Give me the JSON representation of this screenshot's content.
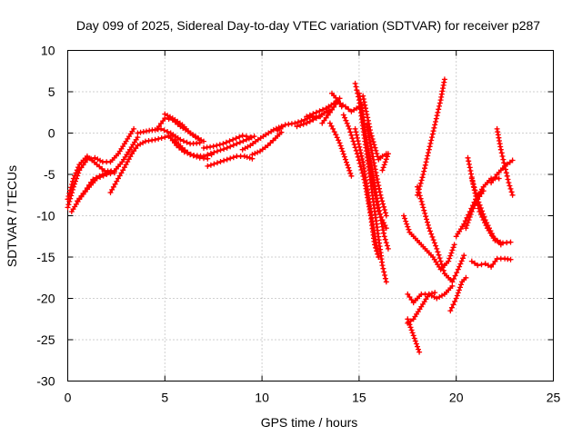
{
  "chart_data": {
    "type": "scatter",
    "title": "Day 099 of 2025, Sidereal Day-to-day VTEC variation (SDTVAR) for receiver p287",
    "xlabel": "GPS time / hours",
    "ylabel": "SDTVAR / TECUs",
    "xlim": [
      0,
      25
    ],
    "ylim": [
      -30,
      10
    ],
    "x_ticks": [
      0,
      5,
      10,
      15,
      20,
      25
    ],
    "y_ticks": [
      -30,
      -25,
      -20,
      -15,
      -10,
      -5,
      0,
      5,
      10
    ],
    "grid": true,
    "marker": "plus",
    "color": "#ff0000",
    "series": [
      {
        "values": [
          [
            0.0,
            -9.0
          ],
          [
            0.3,
            -6.5
          ],
          [
            0.6,
            -4.5
          ],
          [
            1.0,
            -3.2
          ],
          [
            1.4,
            -3.0
          ],
          [
            1.8,
            -3.5
          ],
          [
            2.2,
            -3.5
          ],
          [
            2.6,
            -2.5
          ],
          [
            3.0,
            -1.0
          ],
          [
            3.4,
            0.5
          ]
        ]
      },
      {
        "values": [
          [
            0.0,
            -8.0
          ],
          [
            0.3,
            -5.5
          ],
          [
            0.6,
            -3.8
          ],
          [
            1.0,
            -2.8
          ],
          [
            1.5,
            -3.8
          ],
          [
            1.9,
            -4.6
          ],
          [
            2.4,
            -4.6
          ],
          [
            2.8,
            -3.5
          ],
          [
            3.2,
            -2.0
          ],
          [
            3.6,
            -0.5
          ]
        ]
      },
      {
        "values": [
          [
            0.2,
            -9.5
          ],
          [
            0.6,
            -8.0
          ],
          [
            1.0,
            -6.8
          ],
          [
            1.5,
            -5.5
          ],
          [
            2.0,
            -5.0
          ],
          [
            2.4,
            -4.8
          ]
        ]
      },
      {
        "values": [
          [
            0.5,
            -8.2
          ],
          [
            0.9,
            -7.0
          ],
          [
            1.3,
            -5.6
          ],
          [
            1.8,
            -5.0
          ],
          [
            2.2,
            -4.7
          ]
        ]
      },
      {
        "values": [
          [
            2.2,
            -7.2
          ],
          [
            2.6,
            -5.5
          ],
          [
            3.0,
            -3.8
          ],
          [
            3.3,
            -2.5
          ]
        ]
      },
      {
        "values": [
          [
            3.3,
            -2.5
          ],
          [
            3.6,
            -1.5
          ],
          [
            4.0,
            -1.0
          ],
          [
            4.5,
            -0.8
          ],
          [
            5.0,
            -0.5
          ],
          [
            5.4,
            -0.3
          ]
        ]
      },
      {
        "values": [
          [
            3.6,
            0.0
          ],
          [
            4.2,
            0.3
          ],
          [
            4.8,
            0.5
          ],
          [
            5.3,
            0.0
          ],
          [
            5.8,
            -0.8
          ],
          [
            6.3,
            -1.3
          ],
          [
            6.8,
            -1.2
          ]
        ]
      },
      {
        "values": [
          [
            4.6,
            0.5
          ],
          [
            5.0,
            1.8
          ],
          [
            5.4,
            1.6
          ],
          [
            5.8,
            0.8
          ],
          [
            6.2,
            0.2
          ],
          [
            6.6,
            -0.5
          ],
          [
            7.0,
            -1.0
          ]
        ]
      },
      {
        "values": [
          [
            5.0,
            2.3
          ],
          [
            5.4,
            1.8
          ],
          [
            5.9,
            1.0
          ],
          [
            6.3,
            0.0
          ],
          [
            6.7,
            -0.6
          ]
        ]
      },
      {
        "values": [
          [
            5.2,
            -0.3
          ],
          [
            5.6,
            -1.5
          ],
          [
            6.0,
            -2.3
          ],
          [
            6.5,
            -2.7
          ],
          [
            7.0,
            -2.8
          ],
          [
            7.4,
            -2.6
          ]
        ]
      },
      {
        "values": [
          [
            5.5,
            -0.8
          ],
          [
            5.9,
            -1.8
          ],
          [
            6.3,
            -2.6
          ],
          [
            6.8,
            -3.0
          ],
          [
            7.2,
            -3.1
          ]
        ]
      },
      {
        "values": [
          [
            7.0,
            -1.8
          ],
          [
            7.5,
            -1.6
          ],
          [
            8.0,
            -1.3
          ],
          [
            8.5,
            -0.8
          ],
          [
            9.0,
            -0.3
          ],
          [
            9.4,
            -0.5
          ]
        ]
      },
      {
        "values": [
          [
            7.2,
            -2.6
          ],
          [
            7.7,
            -2.2
          ],
          [
            8.2,
            -1.8
          ],
          [
            8.7,
            -1.3
          ],
          [
            9.2,
            -0.8
          ],
          [
            9.6,
            -0.4
          ]
        ]
      },
      {
        "values": [
          [
            7.2,
            -4.0
          ],
          [
            7.7,
            -3.6
          ],
          [
            8.2,
            -3.2
          ],
          [
            8.7,
            -2.8
          ],
          [
            9.1,
            -2.8
          ],
          [
            9.5,
            -3.1
          ]
        ]
      },
      {
        "values": [
          [
            9.0,
            -2.0
          ],
          [
            9.4,
            -1.5
          ],
          [
            9.8,
            -0.8
          ],
          [
            10.2,
            -0.2
          ],
          [
            10.6,
            0.4
          ],
          [
            11.0,
            0.8
          ]
        ]
      },
      {
        "values": [
          [
            9.5,
            -2.6
          ],
          [
            9.9,
            -2.2
          ],
          [
            10.3,
            -1.5
          ],
          [
            10.7,
            -0.6
          ],
          [
            11.0,
            0.1
          ]
        ]
      },
      {
        "values": [
          [
            10.8,
            0.3
          ],
          [
            11.2,
            1.0
          ],
          [
            11.7,
            1.2
          ],
          [
            12.2,
            1.6
          ],
          [
            12.6,
            2.0
          ],
          [
            13.0,
            2.0
          ]
        ]
      },
      {
        "values": [
          [
            11.8,
            0.8
          ],
          [
            12.3,
            1.2
          ],
          [
            12.8,
            1.8
          ],
          [
            13.2,
            2.4
          ],
          [
            13.5,
            2.8
          ]
        ]
      },
      {
        "values": [
          [
            12.3,
            2.0
          ],
          [
            12.8,
            2.5
          ],
          [
            13.3,
            3.0
          ],
          [
            13.7,
            3.6
          ],
          [
            14.0,
            4.2
          ]
        ]
      },
      {
        "values": [
          [
            13.1,
            1.2
          ],
          [
            13.5,
            2.5
          ],
          [
            13.9,
            3.8
          ],
          [
            14.3,
            3.2
          ],
          [
            14.6,
            2.6
          ],
          [
            15.0,
            3.2
          ]
        ]
      },
      {
        "values": [
          [
            13.6,
            4.8
          ],
          [
            13.9,
            4.0
          ],
          [
            14.1,
            3.2
          ]
        ]
      },
      {
        "values": [
          [
            13.5,
            1.2
          ],
          [
            13.8,
            -0.2
          ],
          [
            14.0,
            -1.2
          ],
          [
            14.3,
            -3.2
          ],
          [
            14.6,
            -5.2
          ]
        ]
      },
      {
        "values": [
          [
            14.2,
            2.2
          ],
          [
            14.5,
            0.5
          ],
          [
            14.9,
            -2.5
          ],
          [
            15.3,
            -6.0
          ],
          [
            15.6,
            -10.0
          ],
          [
            15.8,
            -13.5
          ],
          [
            16.0,
            -15.0
          ]
        ]
      },
      {
        "values": [
          [
            14.8,
            6.0
          ],
          [
            15.0,
            4.0
          ],
          [
            15.3,
            -1.0
          ],
          [
            15.6,
            -6.0
          ],
          [
            15.9,
            -11.0
          ],
          [
            16.2,
            -16.0
          ],
          [
            16.4,
            -18.0
          ]
        ]
      },
      {
        "values": [
          [
            15.0,
            4.8
          ],
          [
            15.3,
            0.0
          ],
          [
            15.7,
            -5.0
          ],
          [
            16.0,
            -9.0
          ],
          [
            16.3,
            -12.5
          ],
          [
            16.5,
            -14.0
          ]
        ]
      },
      {
        "values": [
          [
            15.1,
            3.5
          ],
          [
            15.4,
            -1.5
          ],
          [
            15.7,
            -6.0
          ],
          [
            16.0,
            -9.5
          ],
          [
            16.4,
            -11.5
          ]
        ]
      },
      {
        "values": [
          [
            14.8,
            0.5
          ],
          [
            15.2,
            -3.5
          ],
          [
            15.5,
            -8.0
          ],
          [
            15.8,
            -12.5
          ],
          [
            16.0,
            -15.0
          ]
        ]
      },
      {
        "values": [
          [
            15.2,
            4.5
          ],
          [
            15.6,
            0.0
          ],
          [
            16.0,
            -3.2
          ],
          [
            16.2,
            -2.8
          ],
          [
            16.4,
            -2.5
          ]
        ]
      },
      {
        "values": [
          [
            15.4,
            1.0
          ],
          [
            15.8,
            -4.0
          ],
          [
            16.1,
            -7.5
          ],
          [
            16.4,
            -10.0
          ]
        ]
      },
      {
        "values": [
          [
            16.2,
            -4.5
          ],
          [
            16.5,
            -2.5
          ]
        ]
      },
      {
        "values": [
          [
            17.3,
            -10.0
          ],
          [
            17.6,
            -12.0
          ],
          [
            18.0,
            -13.0
          ],
          [
            18.4,
            -14.0
          ],
          [
            18.8,
            -15.0
          ],
          [
            19.2,
            -16.5
          ],
          [
            19.6,
            -15.5
          ],
          [
            19.9,
            -13.5
          ]
        ]
      },
      {
        "values": [
          [
            18.0,
            -7.5
          ],
          [
            18.3,
            -5.0
          ],
          [
            18.6,
            -2.0
          ],
          [
            18.9,
            1.0
          ],
          [
            19.2,
            4.0
          ],
          [
            19.4,
            6.5
          ]
        ]
      },
      {
        "values": [
          [
            18.0,
            -6.5
          ],
          [
            18.3,
            -9.0
          ],
          [
            18.6,
            -11.5
          ],
          [
            19.0,
            -14.0
          ],
          [
            19.4,
            -17.0
          ],
          [
            19.8,
            -18.0
          ],
          [
            20.1,
            -16.5
          ],
          [
            20.4,
            -14.8
          ]
        ]
      },
      {
        "values": [
          [
            17.5,
            -19.5
          ],
          [
            17.8,
            -20.5
          ],
          [
            18.2,
            -19.5
          ],
          [
            18.6,
            -19.5
          ],
          [
            19.0,
            -20.0
          ],
          [
            19.4,
            -19.5
          ],
          [
            19.8,
            -18.5
          ]
        ]
      },
      {
        "values": [
          [
            17.5,
            -22.5
          ],
          [
            17.8,
            -24.5
          ],
          [
            18.1,
            -26.5
          ]
        ]
      },
      {
        "values": [
          [
            17.5,
            -23.0
          ],
          [
            17.8,
            -22.5
          ],
          [
            18.2,
            -21.0
          ],
          [
            18.6,
            -19.5
          ],
          [
            18.9,
            -19.3
          ]
        ]
      },
      {
        "values": [
          [
            19.7,
            -21.5
          ],
          [
            20.0,
            -20.0
          ],
          [
            20.3,
            -18.0
          ],
          [
            20.5,
            -17.5
          ]
        ]
      },
      {
        "values": [
          [
            20.0,
            -12.5
          ],
          [
            20.4,
            -11.0
          ],
          [
            20.7,
            -9.5
          ],
          [
            21.0,
            -8.0
          ],
          [
            21.4,
            -6.5
          ],
          [
            21.8,
            -5.5
          ],
          [
            22.2,
            -5.5
          ]
        ]
      },
      {
        "values": [
          [
            20.5,
            -11.5
          ],
          [
            20.8,
            -9.5
          ],
          [
            21.1,
            -8.0
          ],
          [
            21.4,
            -7.0
          ]
        ]
      },
      {
        "values": [
          [
            20.6,
            -3.0
          ],
          [
            20.9,
            -6.5
          ],
          [
            21.2,
            -9.5
          ],
          [
            21.6,
            -11.5
          ],
          [
            22.0,
            -13.0
          ],
          [
            22.4,
            -13.3
          ],
          [
            22.8,
            -13.2
          ]
        ]
      },
      {
        "values": [
          [
            20.8,
            -5.5
          ],
          [
            21.1,
            -8.0
          ],
          [
            21.5,
            -10.5
          ],
          [
            21.9,
            -12.5
          ],
          [
            22.3,
            -13.5
          ]
        ]
      },
      {
        "values": [
          [
            20.8,
            -15.5
          ],
          [
            21.1,
            -16.0
          ],
          [
            21.5,
            -15.8
          ],
          [
            21.8,
            -16.2
          ],
          [
            22.1,
            -15.2
          ],
          [
            22.5,
            -15.2
          ],
          [
            22.8,
            -15.3
          ]
        ]
      },
      {
        "values": [
          [
            21.8,
            -6.0
          ],
          [
            22.1,
            -5.0
          ],
          [
            22.5,
            -4.0
          ],
          [
            22.9,
            -3.3
          ]
        ]
      },
      {
        "values": [
          [
            22.1,
            0.5
          ],
          [
            22.3,
            -2.0
          ],
          [
            22.5,
            -4.0
          ],
          [
            22.7,
            -6.0
          ],
          [
            22.9,
            -7.5
          ]
        ]
      }
    ]
  }
}
